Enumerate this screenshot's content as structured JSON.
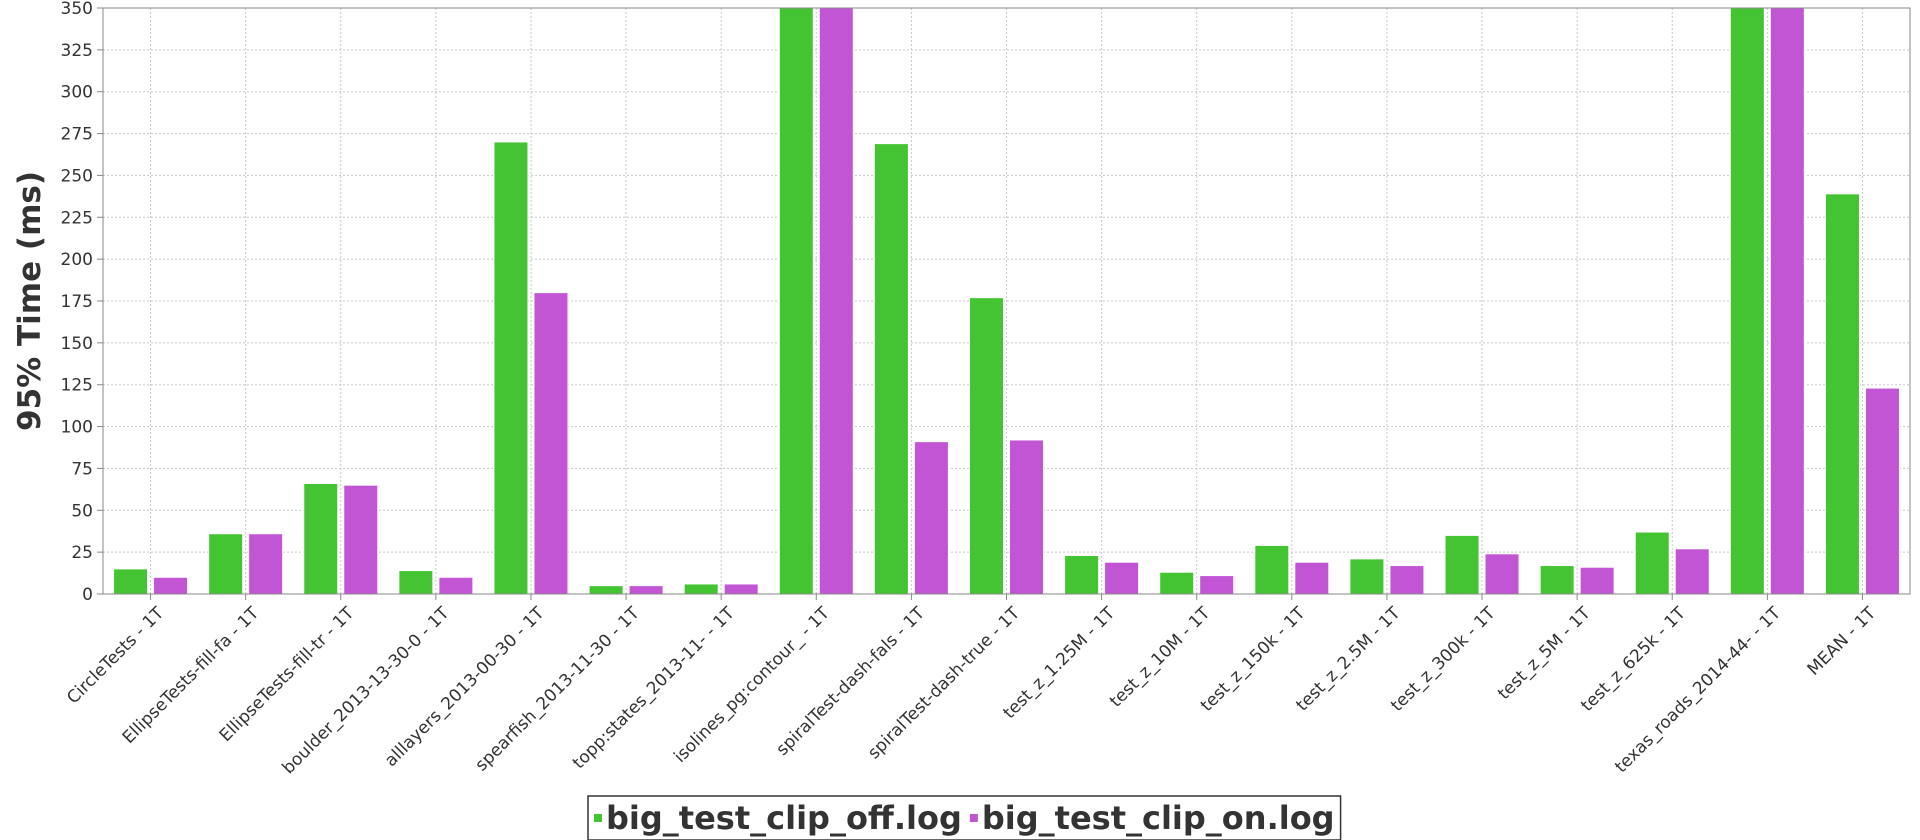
{
  "chart_data": {
    "type": "bar",
    "ylabel": "95% Time (ms)",
    "xlabel": "",
    "ylim": [
      0,
      350
    ],
    "yticks": [
      0,
      25,
      50,
      75,
      100,
      125,
      150,
      175,
      200,
      225,
      250,
      275,
      300,
      325,
      350
    ],
    "grid": true,
    "legend_position": "bottom-center",
    "categories": [
      "CircleTests - 1T",
      "EllipseTests-fill-fa - 1T",
      "EllipseTests-fill-tr - 1T",
      "boulder_2013-13-30-0 - 1T",
      "alllayers_2013-00-30 - 1T",
      "spearfish_2013-11-30 - 1T",
      "topp:states_2013-11- - 1T",
      "isolines_pg:contour_ - 1T",
      "spiralTest-dash-fals - 1T",
      "spiralTest-dash-true - 1T",
      "test_z_1.25M - 1T",
      "test_z_10M - 1T",
      "test_z_150k - 1T",
      "test_z_2.5M - 1T",
      "test_z_300k - 1T",
      "test_z_5M - 1T",
      "test_z_625k - 1T",
      "texas_roads_2014-44- - 1T",
      "MEAN - 1T"
    ],
    "series": [
      {
        "name": "big_test_clip_off.log",
        "color": "#44c432",
        "values": [
          15,
          36,
          66,
          14,
          270,
          5,
          6,
          350,
          269,
          177,
          23,
          13,
          29,
          21,
          35,
          17,
          37,
          350,
          239
        ]
      },
      {
        "name": "big_test_clip_on.log",
        "color": "#c255d4",
        "values": [
          10,
          36,
          65,
          10,
          180,
          5,
          6,
          350,
          91,
          92,
          19,
          11,
          19,
          17,
          24,
          16,
          27,
          350,
          123
        ]
      }
    ]
  }
}
